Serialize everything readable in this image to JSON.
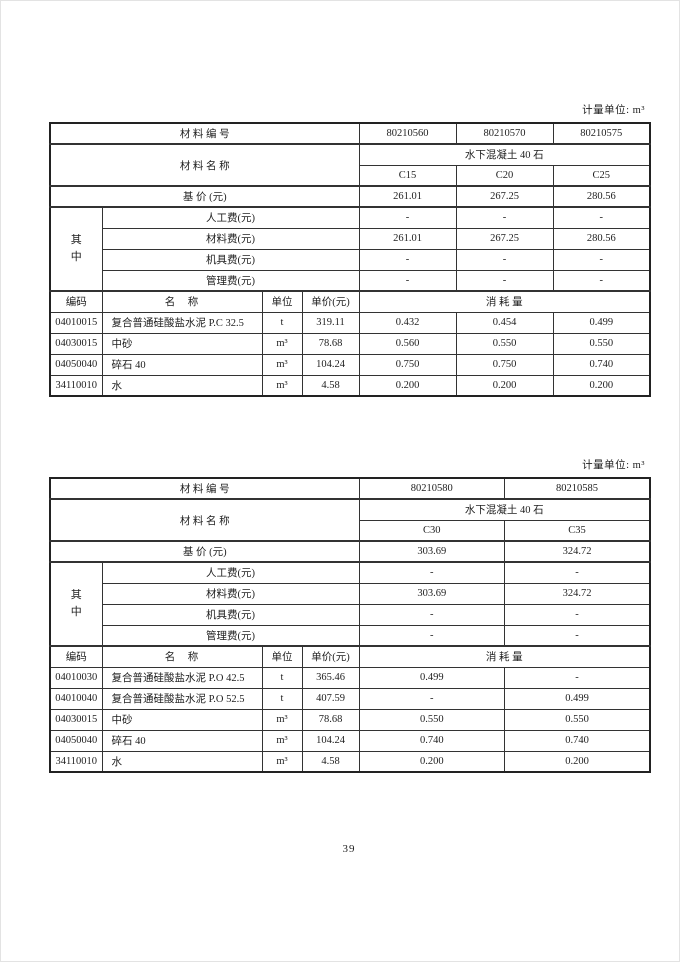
{
  "colors": {
    "background": "#ffffff",
    "text": "#1f1f1f",
    "border": "#333333"
  },
  "page": {
    "number": "39"
  },
  "unit_note": "计量单位: m³",
  "labels": {
    "material_code": "材 料 编 号",
    "material_name": "材 料 名 称",
    "base_price": "基 价 (元)",
    "among": "其中",
    "labor_fee": "人工费(元)",
    "material_fee": "材料费(元)",
    "machine_fee": "机具费(元)",
    "management_fee": "管理费(元)",
    "code": "编码",
    "name": "名　称",
    "unit": "单位",
    "unit_price": "单价(元)",
    "consumption": "消 耗 量"
  },
  "tables": [
    {
      "codes": [
        "80210560",
        "80210570",
        "80210575"
      ],
      "group_name": "水下混凝土 40 石",
      "grades": [
        "C15",
        "C20",
        "C25"
      ],
      "base_prices": [
        "261.01",
        "267.25",
        "280.56"
      ],
      "fees": {
        "labor": [
          "-",
          "-",
          "-"
        ],
        "material": [
          "261.01",
          "267.25",
          "280.56"
        ],
        "machine": [
          "-",
          "-",
          "-"
        ],
        "management": [
          "-",
          "-",
          "-"
        ]
      },
      "rows": [
        {
          "code": "04010015",
          "name": "复合普通硅酸盐水泥 P.C 32.5",
          "unit": "t",
          "price": "319.11",
          "consumption": [
            "0.432",
            "0.454",
            "0.499"
          ]
        },
        {
          "code": "04030015",
          "name": "中砂",
          "unit": "m³",
          "price": "78.68",
          "consumption": [
            "0.560",
            "0.550",
            "0.550"
          ]
        },
        {
          "code": "04050040",
          "name": "碎石 40",
          "unit": "m³",
          "price": "104.24",
          "consumption": [
            "0.750",
            "0.750",
            "0.740"
          ]
        },
        {
          "code": "34110010",
          "name": "水",
          "unit": "m³",
          "price": "4.58",
          "consumption": [
            "0.200",
            "0.200",
            "0.200"
          ]
        }
      ]
    },
    {
      "codes": [
        "80210580",
        "80210585"
      ],
      "group_name": "水下混凝土 40 石",
      "grades": [
        "C30",
        "C35"
      ],
      "base_prices": [
        "303.69",
        "324.72"
      ],
      "fees": {
        "labor": [
          "-",
          "-"
        ],
        "material": [
          "303.69",
          "324.72"
        ],
        "machine": [
          "-",
          "-"
        ],
        "management": [
          "-",
          "-"
        ]
      },
      "rows": [
        {
          "code": "04010030",
          "name": "复合普通硅酸盐水泥 P.O 42.5",
          "unit": "t",
          "price": "365.46",
          "consumption": [
            "0.499",
            "-"
          ]
        },
        {
          "code": "04010040",
          "name": "复合普通硅酸盐水泥 P.O 52.5",
          "unit": "t",
          "price": "407.59",
          "consumption": [
            "-",
            "0.499"
          ]
        },
        {
          "code": "04030015",
          "name": "中砂",
          "unit": "m³",
          "price": "78.68",
          "consumption": [
            "0.550",
            "0.550"
          ]
        },
        {
          "code": "04050040",
          "name": "碎石 40",
          "unit": "m³",
          "price": "104.24",
          "consumption": [
            "0.740",
            "0.740"
          ]
        },
        {
          "code": "34110010",
          "name": "水",
          "unit": "m³",
          "price": "4.58",
          "consumption": [
            "0.200",
            "0.200"
          ]
        }
      ]
    }
  ]
}
